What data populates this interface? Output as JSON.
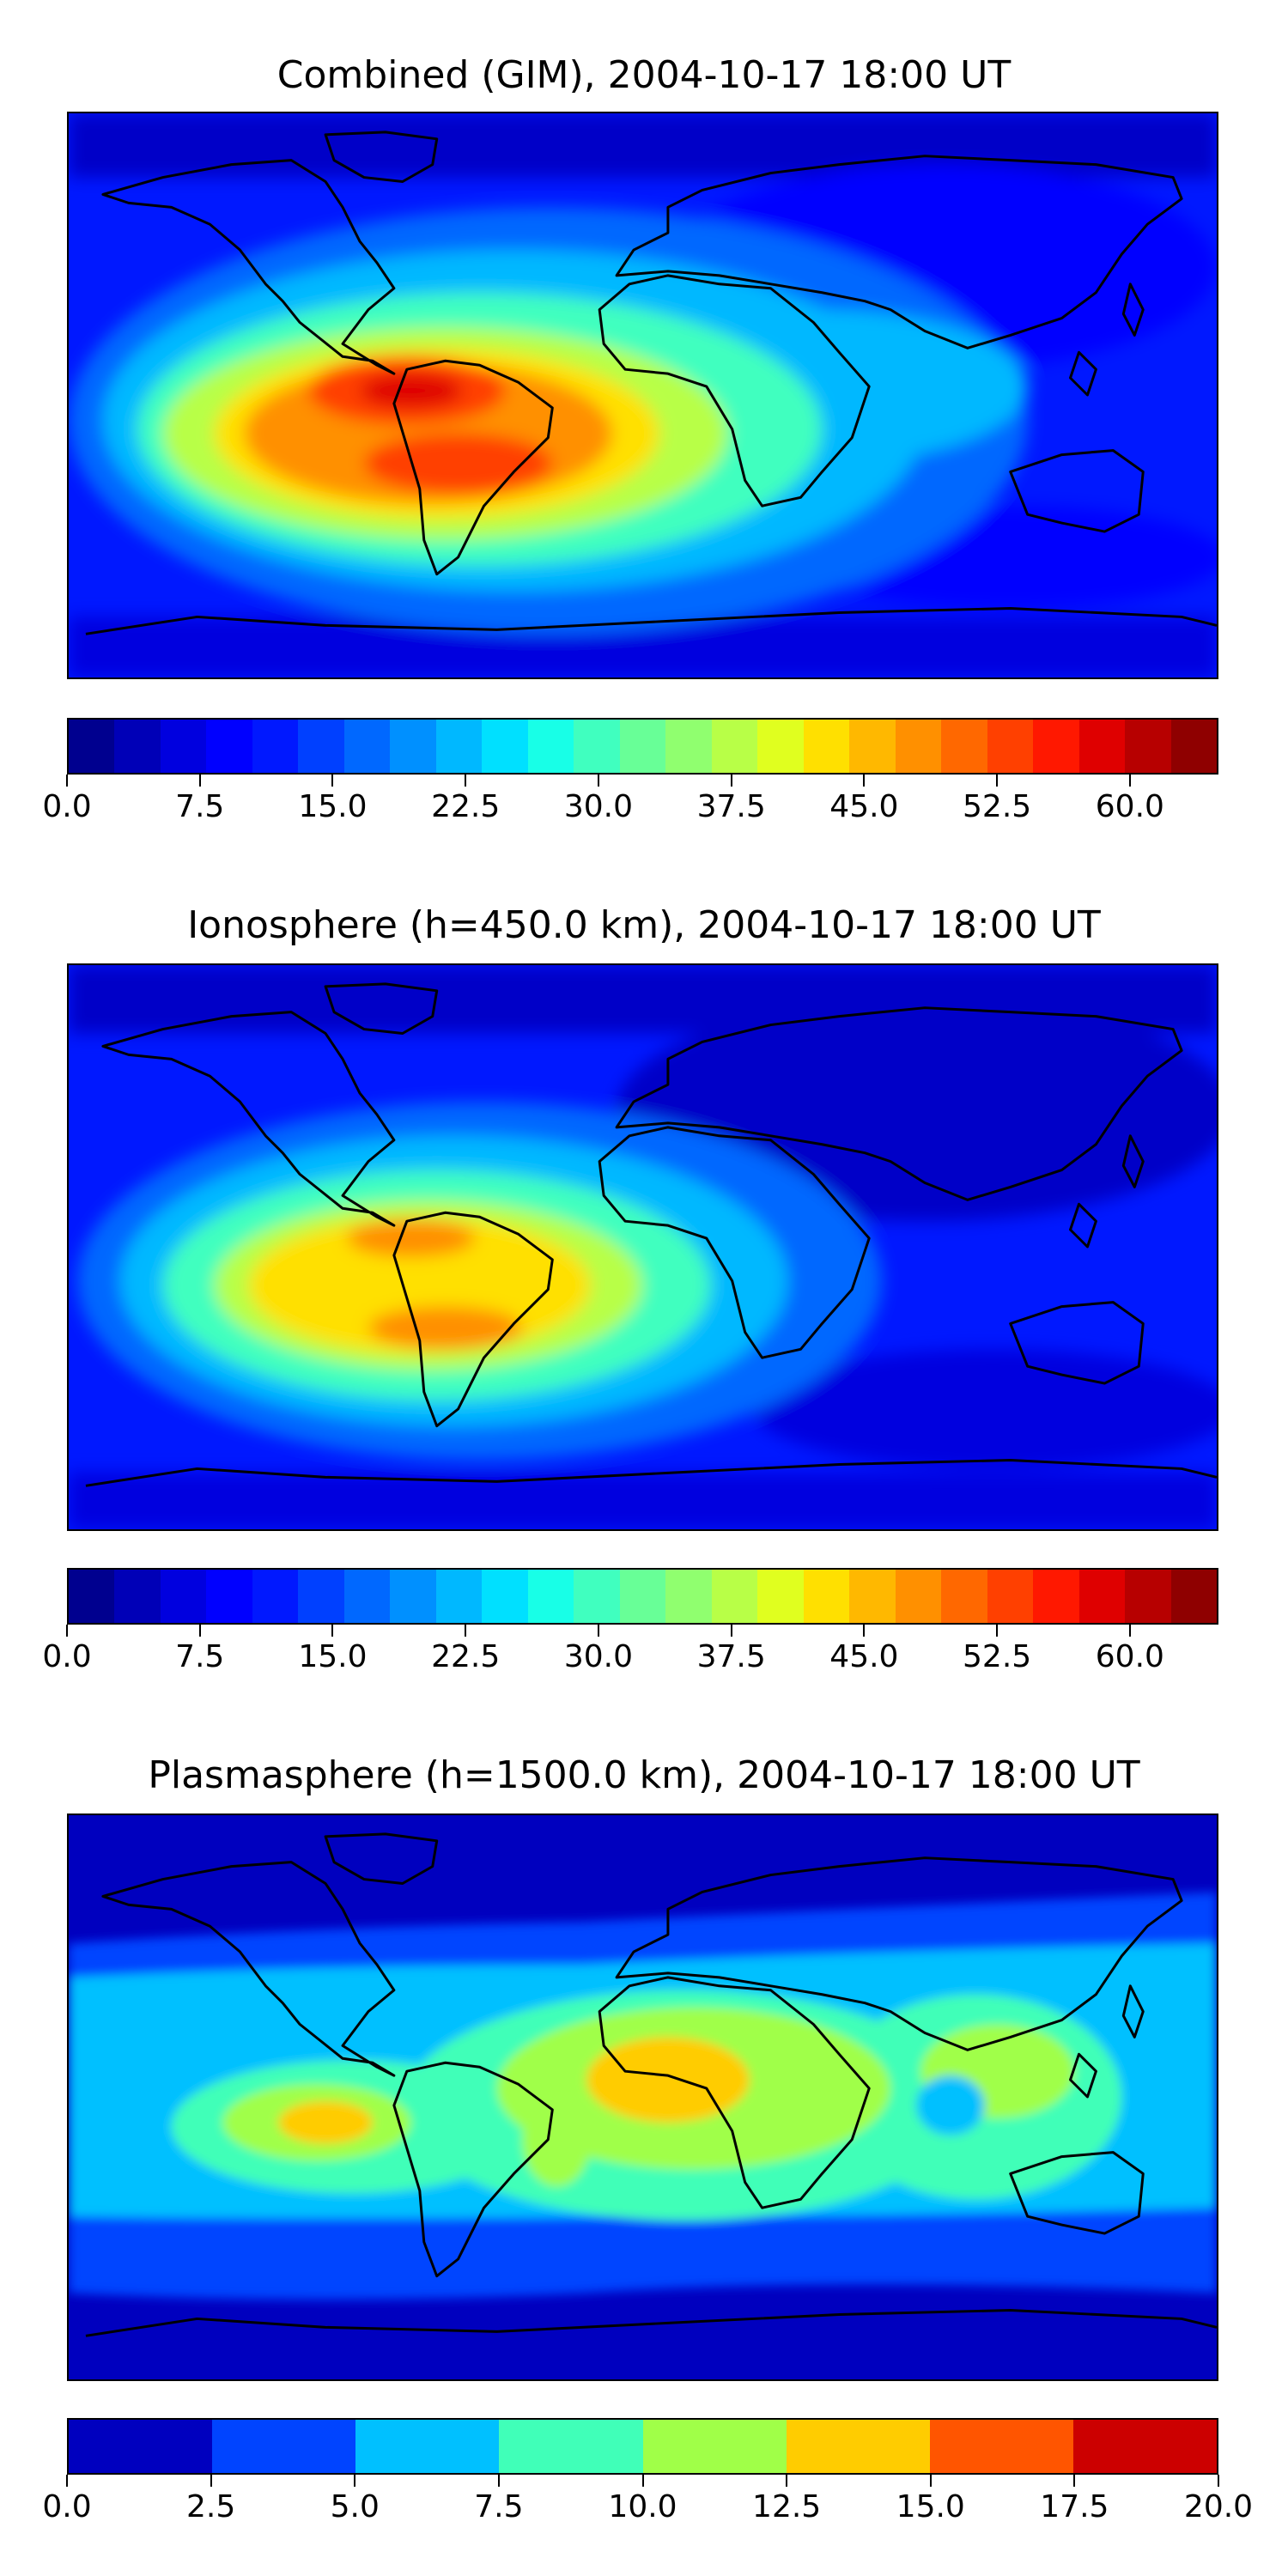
{
  "panels": [
    {
      "title": "Combined (GIM), 2004-10-17 18:00 UT",
      "colorbar_ticks": [
        "0.0",
        "7.5",
        "15.0",
        "22.5",
        "30.0",
        "37.5",
        "45.0",
        "52.5",
        "60.0"
      ],
      "colorbar_colors": [
        "#00008f",
        "#0000b7",
        "#0000df",
        "#0000ff",
        "#0018ff",
        "#0040ff",
        "#0068ff",
        "#0090ff",
        "#00b8ff",
        "#00e0ff",
        "#18ffe7",
        "#40ffbf",
        "#68ff97",
        "#90ff6f",
        "#b8ff47",
        "#e0ff1f",
        "#ffe000",
        "#ffb800",
        "#ff9000",
        "#ff6800",
        "#ff4000",
        "#ff1800",
        "#df0000",
        "#b70000",
        "#8f0000"
      ],
      "colorbar_range": [
        0,
        65
      ]
    },
    {
      "title": "Ionosphere  (h=450.0 km), 2004-10-17 18:00 UT",
      "colorbar_ticks": [
        "0.0",
        "7.5",
        "15.0",
        "22.5",
        "30.0",
        "37.5",
        "45.0",
        "52.5",
        "60.0"
      ],
      "colorbar_colors": [
        "#00008f",
        "#0000b7",
        "#0000df",
        "#0000ff",
        "#0018ff",
        "#0040ff",
        "#0068ff",
        "#0090ff",
        "#00b8ff",
        "#00e0ff",
        "#18ffe7",
        "#40ffbf",
        "#68ff97",
        "#90ff6f",
        "#b8ff47",
        "#e0ff1f",
        "#ffe000",
        "#ffb800",
        "#ff9000",
        "#ff6800",
        "#ff4000",
        "#ff1800",
        "#df0000",
        "#b70000",
        "#8f0000"
      ],
      "colorbar_range": [
        0,
        65
      ]
    },
    {
      "title": "Plasmasphere (h=1500.0 km), 2004-10-17 18:00 UT",
      "colorbar_ticks": [
        "0.0",
        "2.5",
        "5.0",
        "7.5",
        "10.0",
        "12.5",
        "15.0",
        "17.5",
        "20.0"
      ],
      "colorbar_colors": [
        "#0000bf",
        "#0044ff",
        "#00c0ff",
        "#40ffb8",
        "#a0ff48",
        "#ffcc00",
        "#ff5500",
        "#cc0000"
      ],
      "colorbar_range": [
        0,
        20
      ]
    }
  ]
}
